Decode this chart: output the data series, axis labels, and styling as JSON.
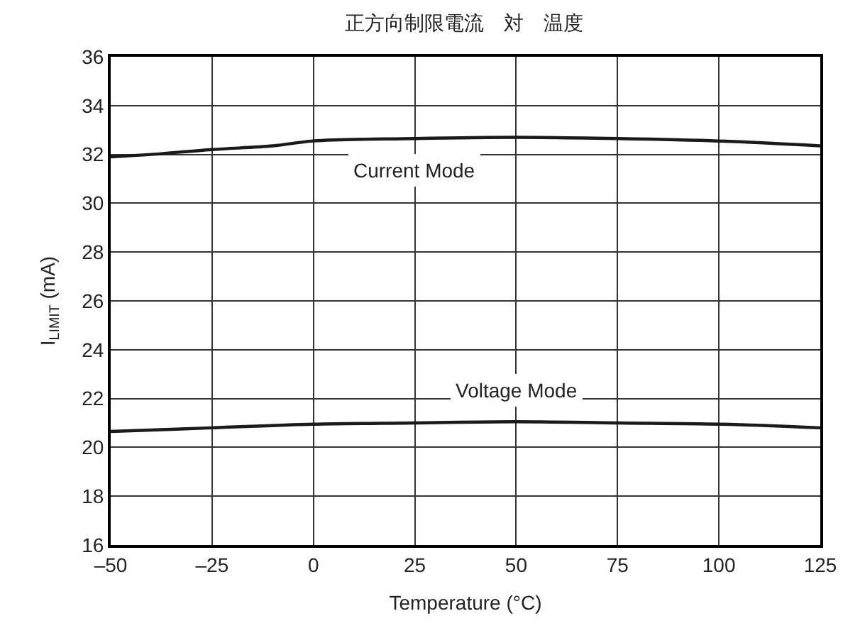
{
  "chart_data": {
    "type": "line",
    "title": "正方向制限電流　対　温度",
    "xlabel": "Temperature (°C)",
    "ylabel": "I$_{LIMIT}$ (mA)",
    "xlim": [
      -50,
      125
    ],
    "xticks": [
      {
        "value": -50,
        "label": "–50"
      },
      {
        "value": -25,
        "label": "–25"
      },
      0,
      25,
      50,
      75,
      100,
      125
    ],
    "ylim": [
      16,
      36
    ],
    "yticks": [
      16,
      18,
      20,
      22,
      24,
      26,
      28,
      30,
      32,
      34,
      36
    ],
    "grid": true,
    "legend": false,
    "marker": "none",
    "line_style": "solid",
    "series": [
      {
        "name": "Current Mode",
        "color": "#1a1a1a",
        "x": [
          -50,
          -40,
          -25,
          -10,
          0,
          25,
          50,
          75,
          100,
          125
        ],
        "values": [
          31.9,
          32.0,
          32.2,
          32.35,
          32.55,
          32.65,
          32.7,
          32.65,
          32.55,
          32.35
        ]
      },
      {
        "name": "Voltage Mode",
        "color": "#1a1a1a",
        "x": [
          -50,
          -25,
          0,
          25,
          50,
          75,
          100,
          125
        ],
        "values": [
          20.65,
          20.8,
          20.95,
          21.0,
          21.05,
          21.0,
          20.95,
          20.8
        ]
      }
    ]
  }
}
